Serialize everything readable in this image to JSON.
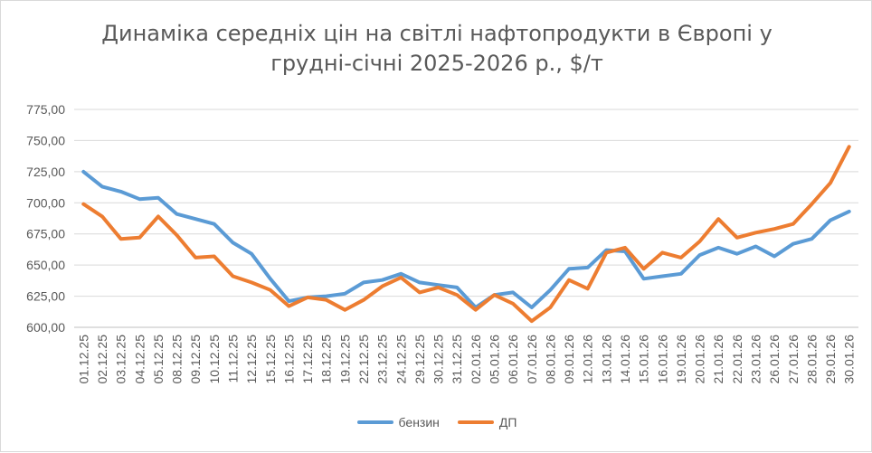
{
  "chart_data": {
    "type": "line",
    "title_line1": "Динаміка середніх цін на світлі нафтопродукти в Європі у",
    "title_line2": "грудні-січні 2025-2026 р., $/т",
    "categories": [
      "01.12.25",
      "02.12.25",
      "03.12.25",
      "04.12.25",
      "05.12.25",
      "08.12.25",
      "09.12.25",
      "10.12.25",
      "11.12.25",
      "12.12.25",
      "15.12.25",
      "16.12.25",
      "17.12.25",
      "18.12.25",
      "19.12.25",
      "22.12.25",
      "23.12.25",
      "24.12.25",
      "29.12.25",
      "30.12.25",
      "31.12.25",
      "02.01.26",
      "05.01.26",
      "06.01.26",
      "07.01.26",
      "08.01.26",
      "09.01.26",
      "12.01.26",
      "13.01.26",
      "14.01.26",
      "15.01.26",
      "16.01.26",
      "19.01.26",
      "20.01.26",
      "21.01.26",
      "22.01.26",
      "23.01.26",
      "26.01.26",
      "27.01.26",
      "28.01.26",
      "29.01.26",
      "30.01.26"
    ],
    "y_ticks": [
      "600,00",
      "625,00",
      "650,00",
      "675,00",
      "700,00",
      "725,00",
      "750,00",
      "775,00"
    ],
    "ylim": [
      600,
      775
    ],
    "grid": true,
    "legend_position": "bottom",
    "series": [
      {
        "name": "бензин",
        "color": "#5B9BD5",
        "values": [
          725,
          713,
          709,
          703,
          704,
          691,
          687,
          683,
          668,
          659,
          639,
          621,
          624,
          625,
          627,
          636,
          638,
          643,
          636,
          634,
          632,
          616,
          626,
          628,
          616,
          630,
          647,
          648,
          662,
          661,
          639,
          641,
          643,
          658,
          664,
          659,
          665,
          657,
          667,
          671,
          686,
          693
        ]
      },
      {
        "name": "ДП",
        "color": "#ED7D31",
        "values": [
          699,
          689,
          671,
          672,
          689,
          674,
          656,
          657,
          641,
          636,
          630,
          617,
          624,
          622,
          614,
          622,
          633,
          640,
          628,
          632,
          626,
          614,
          626,
          619,
          605,
          616,
          638,
          631,
          660,
          664,
          647,
          660,
          656,
          669,
          687,
          672,
          676,
          679,
          683,
          699,
          716,
          745
        ]
      }
    ]
  }
}
